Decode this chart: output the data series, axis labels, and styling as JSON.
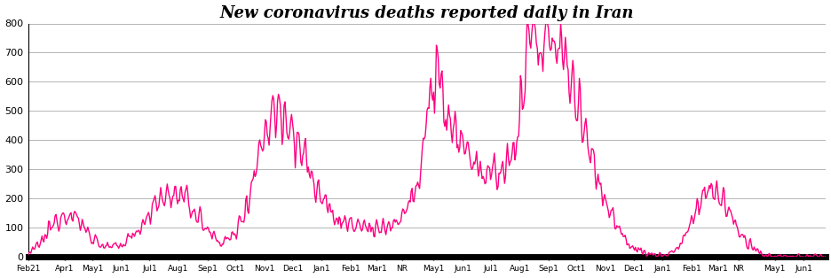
{
  "title": "New coronavirus deaths reported daily in Iran",
  "line_color": "#FF0080",
  "background_color": "#ffffff",
  "ylim": [
    0,
    800
  ],
  "yticks": [
    0,
    100,
    200,
    300,
    400,
    500,
    600,
    700,
    800
  ],
  "xtick_labels": [
    "Feb21",
    "Apr1",
    "May1",
    "Jun1",
    "Jul1",
    "Aug1",
    "Sep1",
    "Oct1",
    "Nov1",
    "Dec1",
    "Jan1",
    "Feb1",
    "Mar1",
    "NR",
    "May1",
    "Jun1",
    "Jul1",
    "Aug1",
    "Sep1",
    "Oct1",
    "Nov1",
    "Dec1",
    "Jan1",
    "Feb1",
    "Mar1",
    "NR",
    "May1",
    "Jun1"
  ],
  "tick_positions": [
    0,
    39,
    69,
    100,
    130,
    161,
    192,
    222,
    253,
    283,
    314,
    345,
    373,
    400,
    434,
    465,
    495,
    526,
    557,
    587,
    618,
    648,
    679,
    710,
    738,
    760,
    799,
    830
  ],
  "title_fontsize": 13,
  "title_style": "italic",
  "title_weight": "bold",
  "n_days": 855
}
